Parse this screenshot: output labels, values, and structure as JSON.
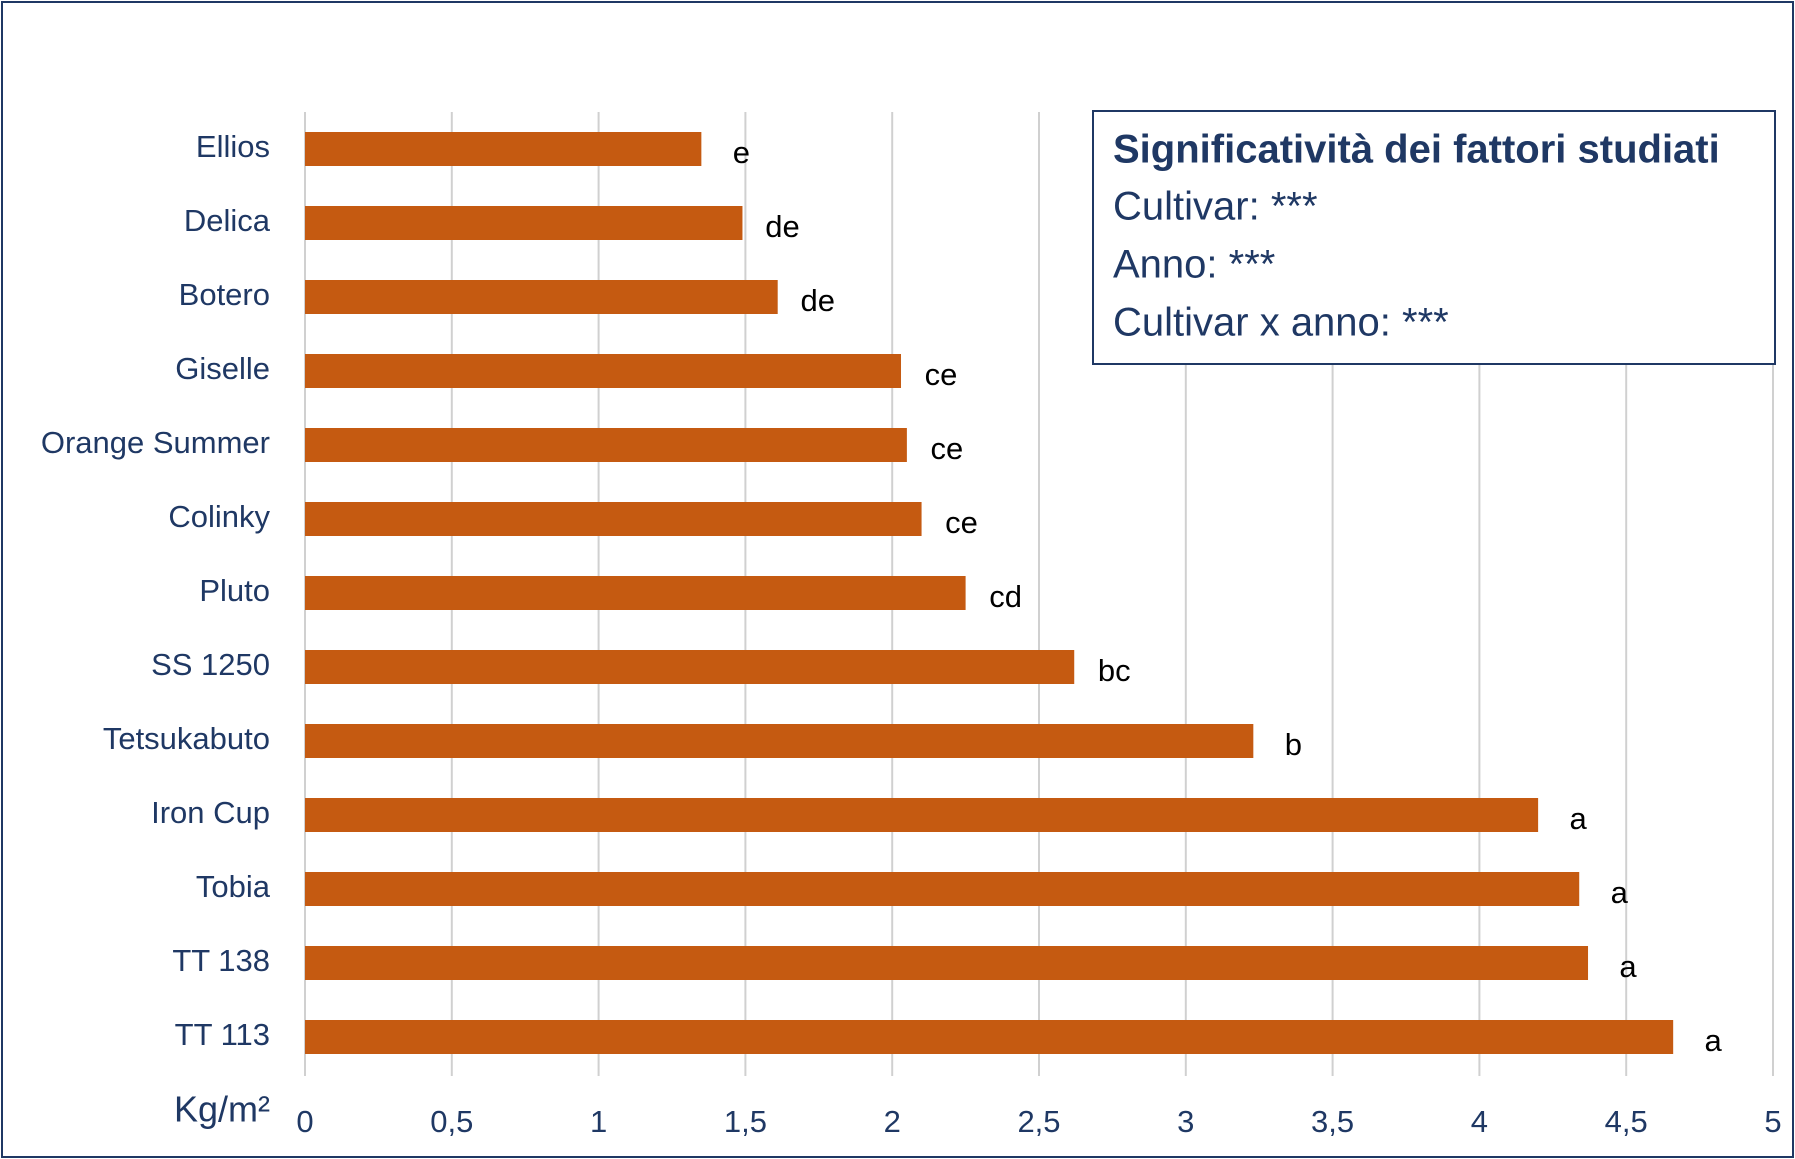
{
  "chart_data": {
    "type": "bar",
    "orientation": "horizontal",
    "categories": [
      "Ellios",
      "Delica",
      "Botero",
      "Giselle",
      "Orange Summer",
      "Colinky",
      "Pluto",
      "SS 1250",
      "Tetsukabuto",
      "Iron Cup",
      "Tobia",
      "TT 138",
      "TT 113"
    ],
    "values": [
      1.35,
      1.49,
      1.61,
      2.03,
      2.05,
      2.1,
      2.25,
      2.62,
      3.23,
      4.2,
      4.34,
      4.37,
      4.66
    ],
    "letters": [
      "e",
      "de",
      "de",
      "ce",
      "ce",
      "ce",
      "cd",
      "bc",
      "b",
      "a",
      "a",
      "a",
      "a"
    ],
    "color": "#c55a11",
    "xlabel": "Kg/m²",
    "xlim": [
      0,
      5
    ],
    "xticks": [
      0,
      {
        "value": 0.5,
        "label": "0,5"
      },
      1,
      {
        "value": 1.5,
        "label": "1,5"
      },
      2,
      {
        "value": 2.5,
        "label": "2,5"
      },
      3,
      {
        "value": 3.5,
        "label": "3,5"
      },
      4,
      {
        "value": 4.5,
        "label": "4,5"
      },
      5
    ],
    "grid": true,
    "legend_box": {
      "title": "Significatività dei fattori studiati",
      "lines": [
        "Cultivar: ***",
        "Anno: ***",
        "Cultivar x anno: ***"
      ]
    }
  }
}
